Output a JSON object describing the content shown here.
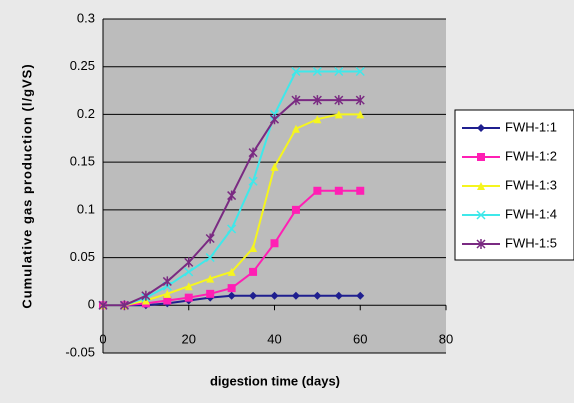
{
  "chart_data": {
    "type": "line",
    "x_label": "digestion time (days)",
    "y_label": "Cumulative gas production (l/gVS)",
    "x": [
      0,
      5,
      10,
      15,
      20,
      25,
      30,
      35,
      40,
      45,
      50,
      55,
      60
    ],
    "series": [
      {
        "name": "FWH-1:1",
        "color": "#1f1f8f",
        "marker": "diamond",
        "values": [
          0,
          0,
          0,
          0.002,
          0.005,
          0.008,
          0.01,
          0.01,
          0.01,
          0.01,
          0.01,
          0.01,
          0.01
        ]
      },
      {
        "name": "FWH-1:2",
        "color": "#ff1fb4",
        "marker": "square",
        "values": [
          0,
          0,
          0.002,
          0.005,
          0.008,
          0.012,
          0.018,
          0.035,
          0.065,
          0.1,
          0.12,
          0.12,
          0.12
        ]
      },
      {
        "name": "FWH-1:3",
        "color": "#f5f51e",
        "marker": "triangle",
        "values": [
          0,
          0,
          0.005,
          0.012,
          0.02,
          0.028,
          0.035,
          0.06,
          0.145,
          0.185,
          0.195,
          0.2,
          0.2
        ]
      },
      {
        "name": "FWH-1:4",
        "color": "#3fe8ea",
        "marker": "x",
        "values": [
          0,
          0,
          0.008,
          0.02,
          0.035,
          0.05,
          0.08,
          0.13,
          0.2,
          0.245,
          0.245,
          0.245,
          0.245
        ]
      },
      {
        "name": "FWH-1:5",
        "color": "#7a2a82",
        "marker": "asterisk",
        "values": [
          0,
          0,
          0.01,
          0.025,
          0.045,
          0.07,
          0.115,
          0.16,
          0.195,
          0.215,
          0.215,
          0.215,
          0.215
        ]
      }
    ],
    "xlim": [
      0,
      80
    ],
    "xticks": [
      0,
      20,
      40,
      60,
      80
    ],
    "ylim": [
      -0.05,
      0.3
    ],
    "yticks": [
      -0.05,
      0,
      0.05,
      0.1,
      0.15,
      0.2,
      0.25,
      0.3
    ],
    "grid": true,
    "legend": "right"
  }
}
